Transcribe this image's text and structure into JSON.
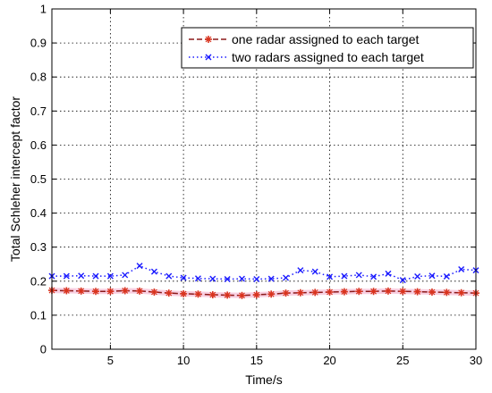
{
  "chart_data": {
    "type": "line",
    "xlabel": "Time/s",
    "ylabel": "Total Schleher intercept factor",
    "xlim": [
      1,
      30
    ],
    "ylim": [
      0,
      1
    ],
    "xticks": [
      5,
      10,
      15,
      20,
      25,
      30
    ],
    "yticks": [
      0,
      0.1,
      0.2,
      0.3,
      0.4,
      0.5,
      0.6,
      0.7,
      0.8,
      0.9,
      1
    ],
    "grid": true,
    "legend_position": "top-right",
    "x": [
      1,
      2,
      3,
      4,
      5,
      6,
      7,
      8,
      9,
      10,
      11,
      12,
      13,
      14,
      15,
      16,
      17,
      18,
      19,
      20,
      21,
      22,
      23,
      24,
      25,
      26,
      27,
      28,
      29,
      30
    ],
    "series": [
      {
        "name": "one radar assigned to each target",
        "color": "#8b1a1a",
        "marker_color": "#d9341e",
        "linestyle": "dashed",
        "marker": "star",
        "values": [
          0.173,
          0.172,
          0.171,
          0.17,
          0.17,
          0.172,
          0.171,
          0.168,
          0.165,
          0.163,
          0.162,
          0.16,
          0.159,
          0.158,
          0.16,
          0.162,
          0.165,
          0.166,
          0.167,
          0.168,
          0.169,
          0.17,
          0.17,
          0.171,
          0.17,
          0.169,
          0.168,
          0.167,
          0.166,
          0.165
        ]
      },
      {
        "name": "two radars assigned to each target",
        "color": "#1a1aff",
        "linestyle": "dotted",
        "marker": "x",
        "values": [
          0.215,
          0.215,
          0.216,
          0.215,
          0.215,
          0.218,
          0.245,
          0.228,
          0.215,
          0.21,
          0.208,
          0.207,
          0.206,
          0.207,
          0.206,
          0.207,
          0.21,
          0.232,
          0.228,
          0.213,
          0.215,
          0.218,
          0.213,
          0.222,
          0.203,
          0.214,
          0.216,
          0.214,
          0.235,
          0.232
        ]
      }
    ]
  }
}
